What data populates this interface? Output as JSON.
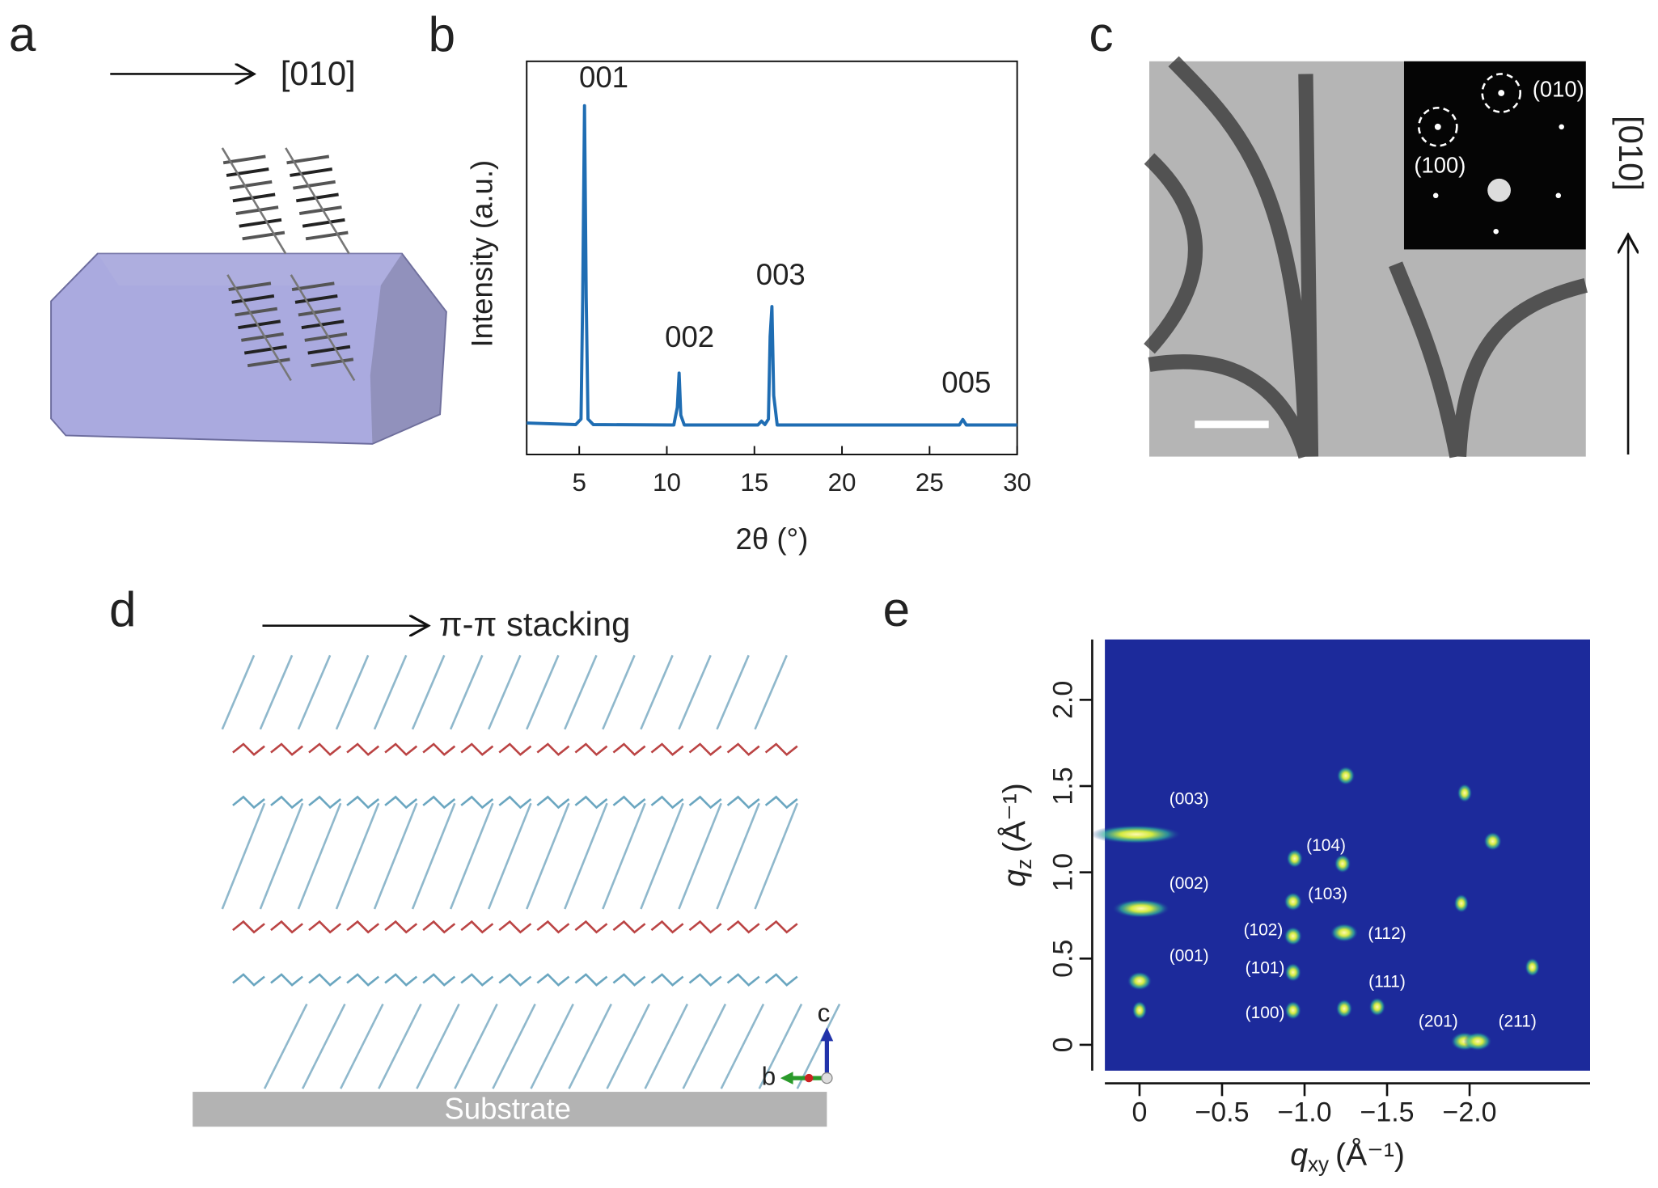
{
  "panels": [
    {
      "label": "a",
      "direction": "[010]"
    },
    {
      "label": "b"
    },
    {
      "label": "c",
      "direction": "[010]",
      "inset_labels": [
        "(010)",
        "(100)"
      ]
    },
    {
      "label": "d",
      "direction": "π-π stacking",
      "substrate": "Substrate",
      "axis_labels": [
        "c",
        "b"
      ]
    },
    {
      "label": "e"
    }
  ],
  "chart_data": [
    {
      "type": "line",
      "xlabel": "2θ (°)",
      "ylabel": "Intensity (a.u.)",
      "xlim": [
        2,
        30
      ],
      "xticks": [
        5,
        10,
        15,
        20,
        25,
        30
      ],
      "ylim": [
        0,
        100
      ],
      "x": [
        2,
        4.8,
        5.1,
        5.2,
        5.3,
        5.4,
        5.5,
        5.8,
        10.4,
        10.6,
        10.7,
        10.8,
        11,
        15.2,
        15.4,
        15.6,
        15.8,
        15.9,
        16,
        16.1,
        16.3,
        26.7,
        26.9,
        27.1,
        30
      ],
      "series": [
        {
          "color": "#1f6db3",
          "values": [
            8,
            7.6,
            9,
            40,
            88.7,
            40,
            9,
            7.6,
            7.5,
            12,
            20.7,
            10,
            7.5,
            7.5,
            8.5,
            7.6,
            9,
            30,
            37.6,
            15,
            7.5,
            7.5,
            8.9,
            7.5,
            7.5
          ]
        }
      ],
      "annotations": [
        {
          "x": 6.4,
          "y": 95.4,
          "label": "001"
        },
        {
          "x": 11.3,
          "y": 29.3,
          "label": "002"
        },
        {
          "x": 16.5,
          "y": 45.2,
          "label": "003"
        },
        {
          "x": 27.1,
          "y": 17.7,
          "label": "005"
        }
      ]
    },
    {
      "type": "scatter",
      "background": "#1c2a9b",
      "color": "#c8e84a",
      "xlabel": {
        "symbol": "q",
        "subscript": "xy",
        "unit": "(Å⁻¹)"
      },
      "ylabel": {
        "symbol": "q",
        "subscript": "z",
        "unit": "(Å⁻¹)"
      },
      "xlim": [
        0.21,
        -2.73
      ],
      "ylim": [
        -0.15,
        2.35
      ],
      "xticks": [
        0,
        {
          "value": -0.5,
          "label": "−0.5"
        },
        {
          "value": -1.0,
          "label": "−1.0"
        },
        {
          "value": -1.5,
          "label": "−1.5"
        },
        {
          "value": -2.0,
          "label": "−2.0"
        }
      ],
      "yticks": [
        0,
        0.5,
        {
          "value": 1.0,
          "label": "1.0"
        },
        1.5,
        {
          "value": 2.0,
          "label": "2.0"
        }
      ],
      "x": [
        0,
        0,
        -0.01,
        0.02,
        -0.93,
        -0.93,
        -0.93,
        -0.93,
        -0.94,
        -1.24,
        -1.24,
        -1.44,
        -1.97,
        -2.05,
        -1.23,
        -1.25,
        -1.97,
        -2.14,
        -2.38,
        -1.95
      ],
      "values": [
        0.37,
        0.2,
        0.79,
        1.22,
        0.2,
        0.42,
        0.63,
        0.83,
        1.08,
        0.65,
        0.21,
        0.22,
        0.02,
        0.02,
        1.05,
        1.56,
        1.46,
        1.18,
        0.45,
        0.82
      ],
      "widths": [
        0.1,
        0.04,
        0.3,
        0.5,
        0.05,
        0.05,
        0.06,
        0.06,
        0.05,
        0.12,
        0.05,
        0.05,
        0.12,
        0.12,
        0.05,
        0.06,
        0.04,
        0.06,
        0.04,
        0.04
      ],
      "annotations": [
        {
          "x": -0.3,
          "y": 1.42,
          "label": "(003)"
        },
        {
          "x": -0.3,
          "y": 0.93,
          "label": "(002)"
        },
        {
          "x": -0.3,
          "y": 0.51,
          "label": "(001)"
        },
        {
          "x": -1.13,
          "y": 1.15,
          "label": "(104)"
        },
        {
          "x": -1.14,
          "y": 0.87,
          "label": "(103)"
        },
        {
          "x": -0.75,
          "y": 0.66,
          "label": "(102)"
        },
        {
          "x": -1.5,
          "y": 0.64,
          "label": "(112)"
        },
        {
          "x": -0.76,
          "y": 0.44,
          "label": "(101)"
        },
        {
          "x": -1.5,
          "y": 0.36,
          "label": "(111)"
        },
        {
          "x": -0.76,
          "y": 0.18,
          "label": "(100)"
        },
        {
          "x": -1.81,
          "y": 0.13,
          "label": "(201)"
        },
        {
          "x": -2.29,
          "y": 0.13,
          "label": "(211)"
        }
      ]
    }
  ]
}
